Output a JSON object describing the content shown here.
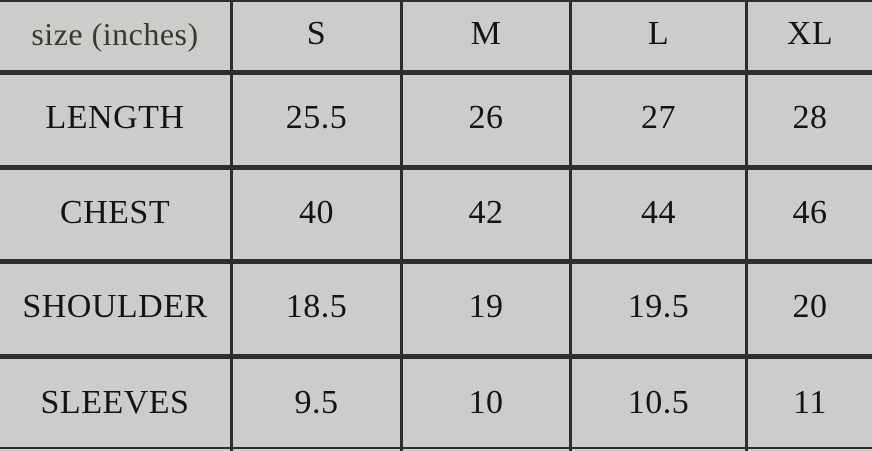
{
  "table": {
    "header": {
      "size_label": "size (inches)",
      "col_s": "S",
      "col_m": "M",
      "col_l": "L",
      "col_xl": "XL"
    },
    "rows": [
      {
        "label": "LENGTH",
        "values": [
          "25.5",
          "26",
          "27",
          "28"
        ]
      },
      {
        "label": "CHEST",
        "values": [
          "40",
          "42",
          "44",
          "46"
        ]
      },
      {
        "label": "SHOULDER",
        "values": [
          "18.5",
          "19",
          "19.5",
          "20"
        ]
      },
      {
        "label": "SLEEVES",
        "values": [
          "9.5",
          "10",
          "10.5",
          "11"
        ]
      }
    ]
  },
  "colors": {
    "cell_background": "#cccccb",
    "grid_line": "#2e2e2e",
    "text": "#141414",
    "size_label_text": "#353b2f"
  },
  "chart_data": {
    "type": "table",
    "title": "size (inches)",
    "columns": [
      "size (inches)",
      "S",
      "M",
      "L",
      "XL"
    ],
    "rows": [
      [
        "LENGTH",
        25.5,
        26,
        27,
        28
      ],
      [
        "CHEST",
        40,
        42,
        44,
        46
      ],
      [
        "SHOULDER",
        18.5,
        19,
        19.5,
        20
      ],
      [
        "SLEEVES",
        9.5,
        10,
        10.5,
        11
      ]
    ]
  }
}
